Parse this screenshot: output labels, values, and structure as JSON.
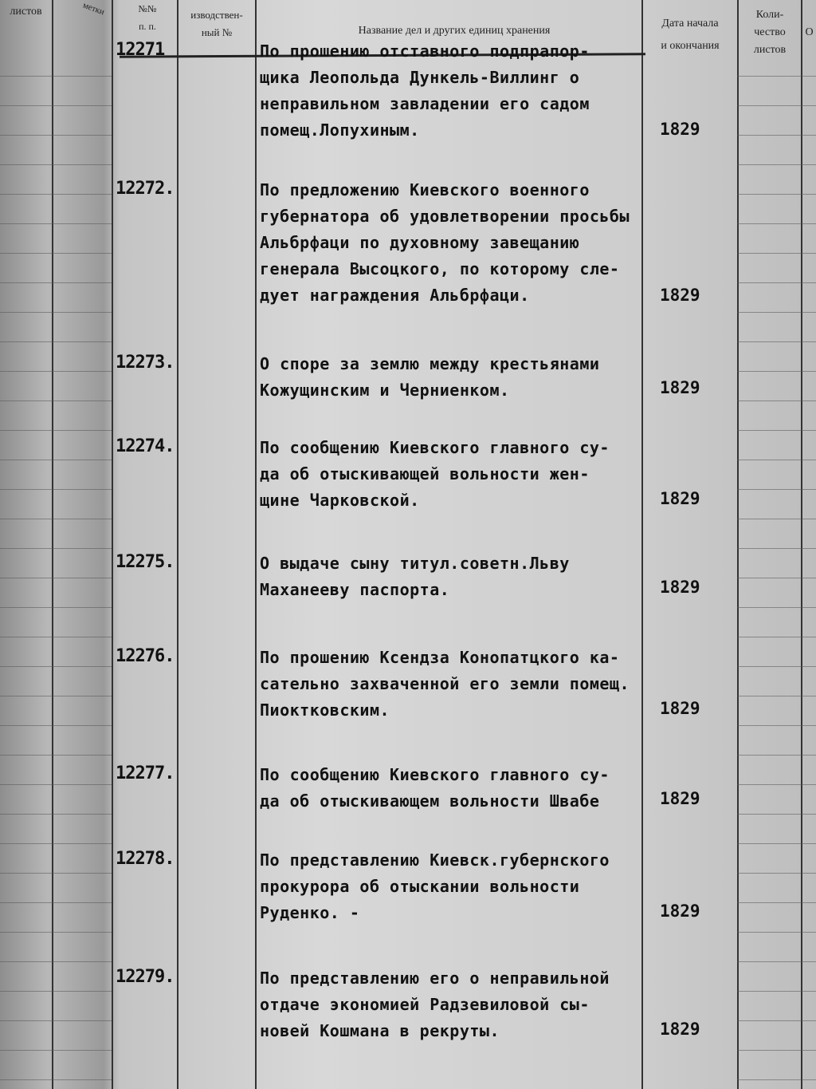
{
  "header": {
    "col_sheets": "листов",
    "col_marks": "метки",
    "col_number": "№№\nп. п.",
    "col_prod_number": "изводствен-\nный №",
    "col_title": "Название дел и других единиц хранения",
    "col_dates": "Дата начала\nи окончания",
    "col_count": "Коли-\nчество\nлистов",
    "col_other": "О"
  },
  "entries": [
    {
      "number": "12271",
      "title": "По прошению отставного подпрапор-\nщика Леопольда Дункель-Виллинг о\nнеправильном завладении его садом\nпомещ.Лопухиным.",
      "date": "1829"
    },
    {
      "number": "12272.",
      "title": "По предложению Киевского военного\nгубернатора об удовлетворении просьбы\nАльбрфаци по духовному завещанию\nгенерала Высоцкого, по которому сле-\nдует награждения Альбрфаци.",
      "date": "1829"
    },
    {
      "number": "12273.",
      "title": "О споре за землю между крестьянами\nКожущинским и Черниенком.",
      "date": "1829"
    },
    {
      "number": "12274.",
      "title": "По сообщению Киевского главного су-\nда об отыскивающей вольности жен-\nщине Чарковской.",
      "date": "1829"
    },
    {
      "number": "12275.",
      "title": "О выдаче сыну титул.советн.Льву\nМаханееву паспорта.",
      "date": "1829"
    },
    {
      "number": "12276.",
      "title": "По прошению Ксендза Конопатцкого ка-\nсательно захваченной его земли помещ.\nПиоктковским.",
      "date": "1829"
    },
    {
      "number": "12277.",
      "title": "По сообщению Киевского главного су-\nда об отыскивающем вольности Швабе",
      "date": "1829"
    },
    {
      "number": "12278.",
      "title": "По представлению Киевск.губернского\nпрокурора об отыскании вольности\nРуденко. -",
      "date": "1829"
    },
    {
      "number": "12279.",
      "title": "По представлению его о неправильной\nотдаче экономией Радзевиловой сы-\nновей Кошмана в рекруты.",
      "date": "1829"
    }
  ]
}
